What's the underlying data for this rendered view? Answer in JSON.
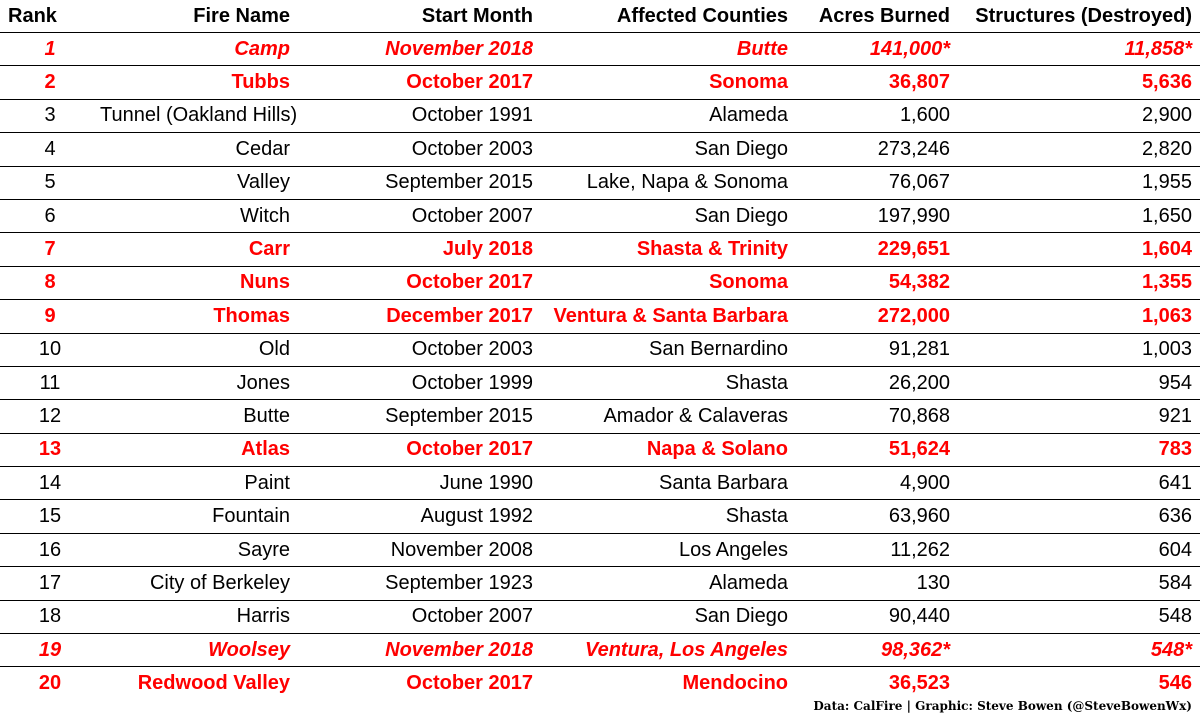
{
  "table": {
    "columns": [
      "Rank",
      "Fire Name",
      "Start Month",
      "Affected Counties",
      "Acres Burned",
      "Structures (Destroyed)"
    ],
    "rows": [
      [
        "1",
        "Camp",
        "November 2018",
        "Butte",
        "141,000*",
        "11,858*"
      ],
      [
        "2",
        "Tubbs",
        "October 2017",
        "Sonoma",
        "36,807",
        "5,636"
      ],
      [
        "3",
        "Tunnel (Oakland Hills)",
        "October 1991",
        "Alameda",
        "1,600",
        "2,900"
      ],
      [
        "4",
        "Cedar",
        "October 2003",
        "San Diego",
        "273,246",
        "2,820"
      ],
      [
        "5",
        "Valley",
        "September 2015",
        "Lake, Napa & Sonoma",
        "76,067",
        "1,955"
      ],
      [
        "6",
        "Witch",
        "October 2007",
        "San Diego",
        "197,990",
        "1,650"
      ],
      [
        "7",
        "Carr",
        "July 2018",
        "Shasta & Trinity",
        "229,651",
        "1,604"
      ],
      [
        "8",
        "Nuns",
        "October 2017",
        "Sonoma",
        "54,382",
        "1,355"
      ],
      [
        "9",
        "Thomas",
        "December 2017",
        "Ventura & Santa Barbara",
        "272,000",
        "1,063"
      ],
      [
        "10",
        "Old",
        "October 2003",
        "San Bernardino",
        "91,281",
        "1,003"
      ],
      [
        "11",
        "Jones",
        "October 1999",
        "Shasta",
        "26,200",
        "954"
      ],
      [
        "12",
        "Butte",
        "September 2015",
        "Amador & Calaveras",
        "70,868",
        "921"
      ],
      [
        "13",
        "Atlas",
        "October 2017",
        "Napa & Solano",
        "51,624",
        "783"
      ],
      [
        "14",
        "Paint",
        "June 1990",
        "Santa Barbara",
        "4,900",
        "641"
      ],
      [
        "15",
        "Fountain",
        "August 1992",
        "Shasta",
        "63,960",
        "636"
      ],
      [
        "16",
        "Sayre",
        "November 2008",
        "Los Angeles",
        "11,262",
        "604"
      ],
      [
        "17",
        "City of Berkeley",
        "September 1923",
        "Alameda",
        "130",
        "584"
      ],
      [
        "18",
        "Harris",
        "October 2007",
        "San Diego",
        "90,440",
        "548"
      ],
      [
        "19",
        "Woolsey",
        "November 2018",
        "Ventura, Los Angeles",
        "98,362*",
        "548*"
      ],
      [
        "20",
        "Redwood Valley",
        "October 2017",
        "Mendocino",
        "36,523",
        "546"
      ]
    ]
  },
  "footer": "Data: CalFire | Graphic: Steve Bowen (@SteveBowenWx)"
}
